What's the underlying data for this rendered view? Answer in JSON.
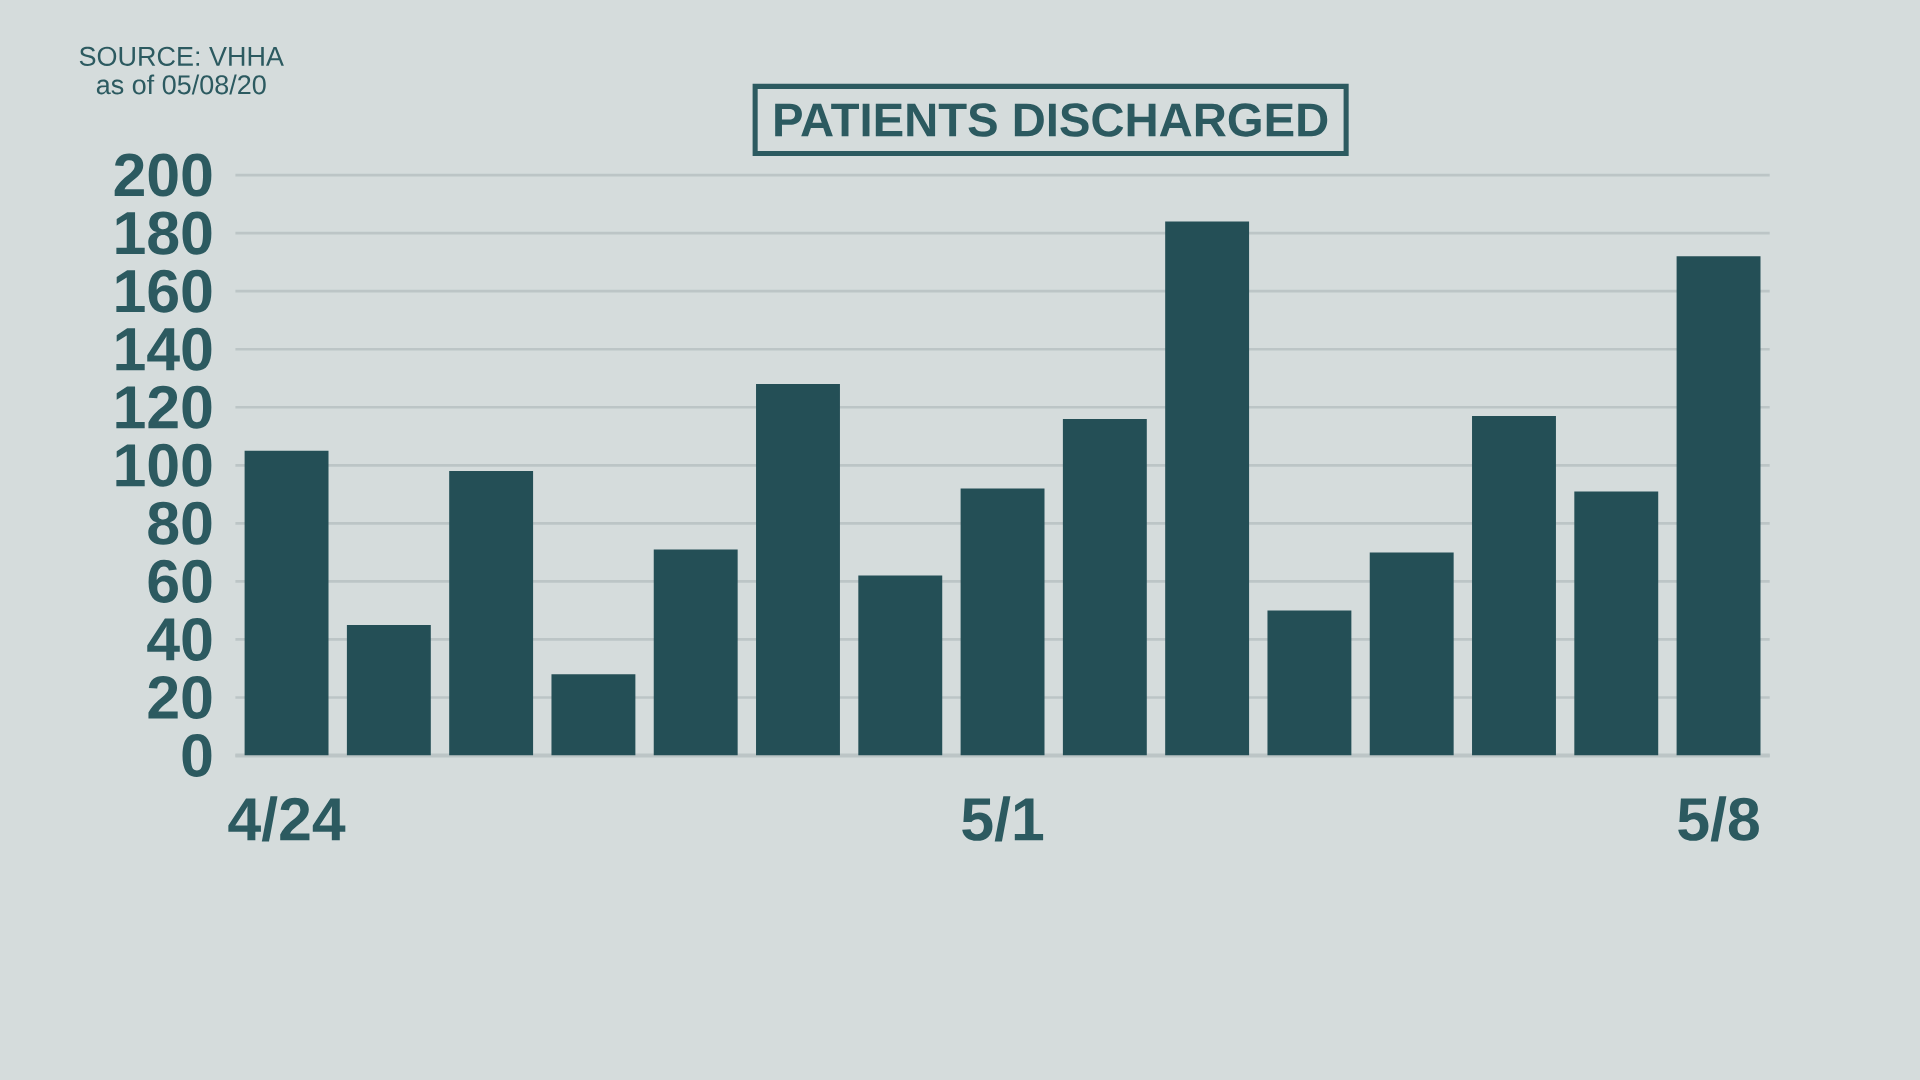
{
  "chart_data": {
    "type": "bar",
    "title": "PATIENTS DISCHARGED",
    "annotations": [
      "SOURCE: VHHA",
      "as of 05/08/20"
    ],
    "categories": [
      "4/24",
      null,
      null,
      null,
      null,
      null,
      null,
      "5/1",
      null,
      null,
      null,
      null,
      null,
      null,
      "5/8"
    ],
    "values": [
      105,
      45,
      98,
      28,
      71,
      128,
      62,
      92,
      116,
      184,
      50,
      70,
      117,
      91,
      172
    ],
    "color": "#244f56",
    "ylim": [
      0,
      200
    ],
    "yticks": [
      0,
      20,
      40,
      60,
      80,
      100,
      120,
      140,
      160,
      180,
      200
    ],
    "grid": "y"
  }
}
